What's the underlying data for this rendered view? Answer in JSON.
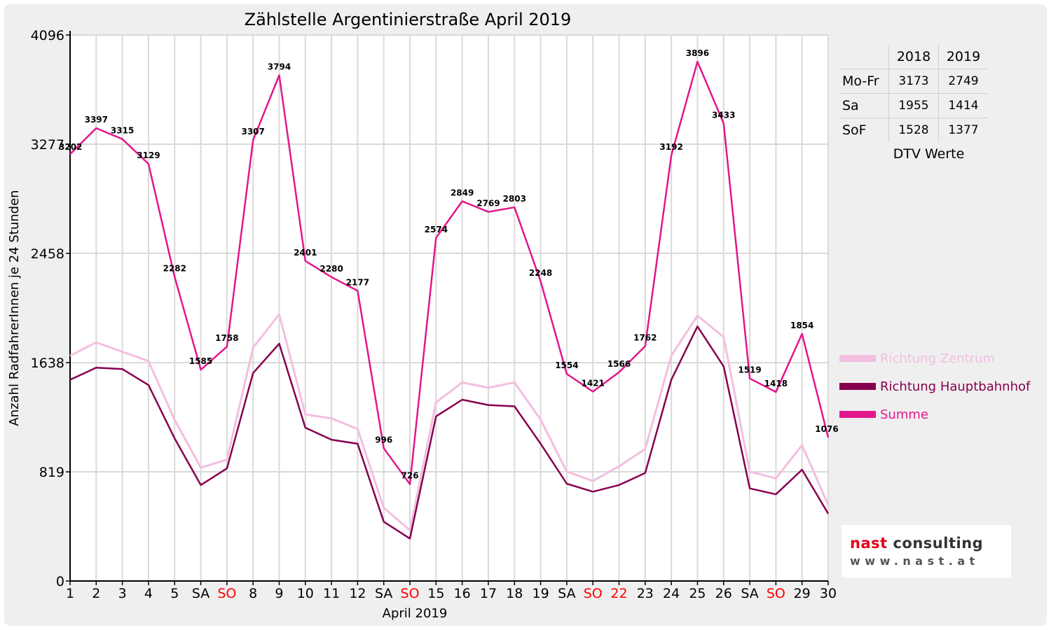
{
  "chart_data": {
    "type": "line",
    "title": "Zählstelle Argentinierstraße April 2019",
    "xlabel": "April 2019",
    "ylabel": "Anzahl RadfahrerInnen je 24 Stunden",
    "ylim": [
      0,
      4096
    ],
    "yticks": [
      "0",
      "819",
      "1638",
      "2458",
      "3277",
      "4096"
    ],
    "categories": [
      "1",
      "2",
      "3",
      "4",
      "5",
      "SA",
      "SO",
      "8",
      "9",
      "10",
      "11",
      "12",
      "SA",
      "SO",
      "15",
      "16",
      "17",
      "18",
      "19",
      "SA",
      "SO",
      "22",
      "23",
      "24",
      "25",
      "26",
      "SA",
      "SO",
      "29",
      "30"
    ],
    "red_categories": [
      6,
      13,
      20,
      21,
      27
    ],
    "grid": true,
    "legend_position": "right",
    "series": [
      {
        "name": "Richtung Zentrum",
        "color": "#f2bfe0",
        "values": [
          1690,
          1790,
          1720,
          1650,
          1210,
          850,
          910,
          1750,
          2000,
          1250,
          1220,
          1140,
          550,
          380,
          1340,
          1490,
          1450,
          1490,
          1210,
          820,
          750,
          860,
          990,
          1690,
          1990,
          1830,
          820,
          770,
          1020,
          570
        ]
      },
      {
        "name": "Richtung Hauptbahnhof",
        "color": "#87004f",
        "values": [
          1510,
          1600,
          1590,
          1470,
          1070,
          720,
          845,
          1560,
          1780,
          1150,
          1060,
          1030,
          445,
          318,
          1235,
          1360,
          1320,
          1310,
          1030,
          730,
          670,
          720,
          810,
          1510,
          1910,
          1610,
          695,
          650,
          835,
          505
        ]
      },
      {
        "name": "Summe",
        "color": "#e3168d",
        "values": [
          3202,
          3397,
          3315,
          3129,
          2282,
          1585,
          1758,
          3307,
          3794,
          2401,
          2280,
          2177,
          996,
          726,
          2574,
          2849,
          2769,
          2803,
          2248,
          1554,
          1421,
          1566,
          1762,
          3192,
          3896,
          3433,
          1519,
          1418,
          1854,
          1076
        ],
        "labels": [
          "3202",
          "3397",
          "3315",
          "3129",
          "2282",
          "1585",
          "1758",
          "3307",
          "3794",
          "2401",
          "2280",
          "2177",
          "996",
          "726",
          "2574",
          "2849",
          "2769",
          "2803",
          "2248",
          "1554",
          "1421",
          "1566",
          "1762",
          "3192",
          "3896",
          "3433",
          "1519",
          "1418",
          "1854",
          "1076"
        ]
      }
    ]
  },
  "dtv_table": {
    "columns": [
      "2018",
      "2019"
    ],
    "rows": [
      {
        "label": "Mo-Fr",
        "values": [
          "3173",
          "2749"
        ]
      },
      {
        "label": "Sa",
        "values": [
          "1955",
          "1414"
        ]
      },
      {
        "label": "SoF",
        "values": [
          "1528",
          "1377"
        ]
      }
    ],
    "caption": "DTV Werte"
  },
  "logo": {
    "line1_a": "nast",
    "line1_b": "consulting",
    "line2": "www.nast.at"
  },
  "colors": {
    "weekend_label": "#ff0000",
    "grid": "#d9d9d9"
  }
}
